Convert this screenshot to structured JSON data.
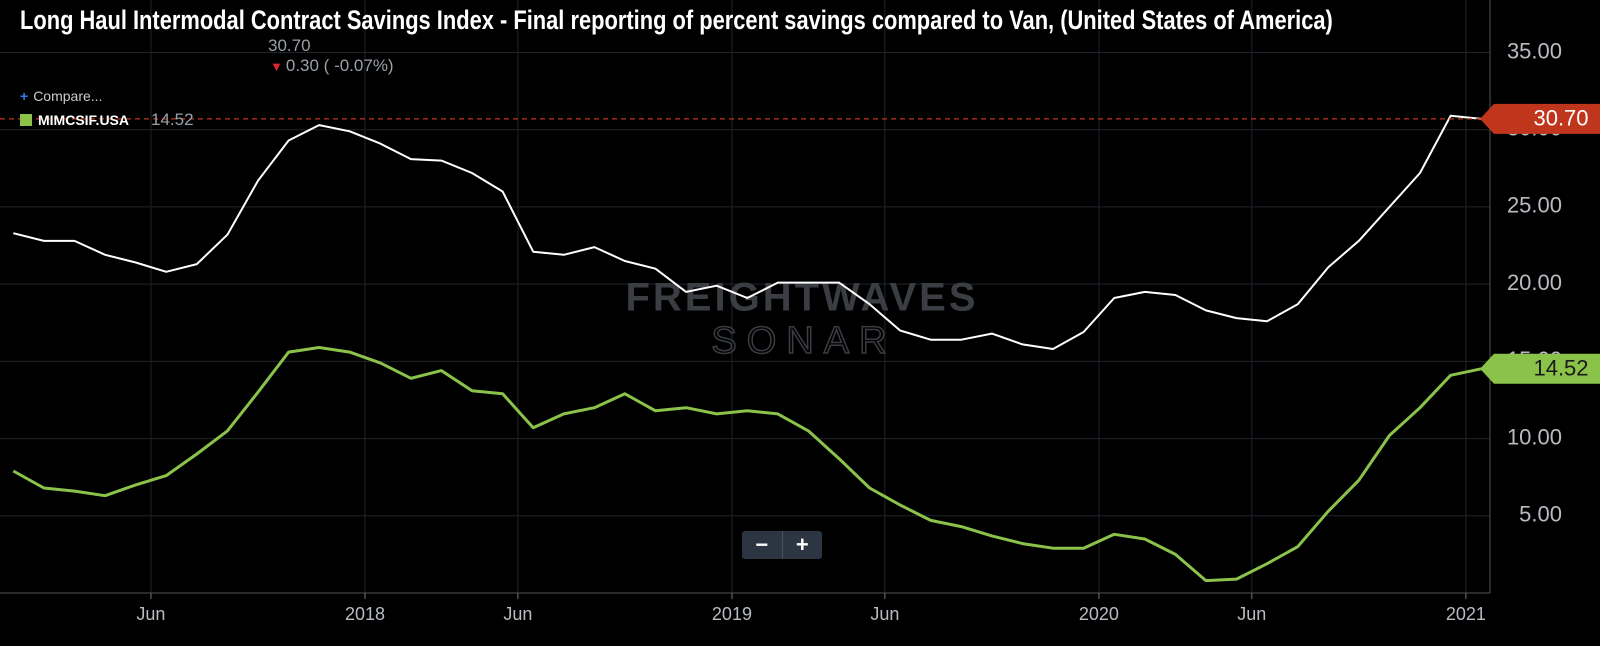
{
  "chart_data": {
    "type": "line",
    "title": "Long Haul Intermodal Contract Savings Index - Final reporting of percent savings compared to Van, (United States of America)",
    "change_label": "0.30 ( -0.07%)",
    "compare_label": "Compare...",
    "watermark": [
      "FREIGHTWAVES",
      "SONAR"
    ],
    "controls": [
      "−",
      "+"
    ],
    "x": [
      "2017-01",
      "2017-02",
      "2017-03",
      "2017-04",
      "2017-05",
      "2017-06",
      "2017-07",
      "2017-08",
      "2017-09",
      "2017-10",
      "2017-11",
      "2017-12",
      "2018-01",
      "2018-02",
      "2018-03",
      "2018-04",
      "2018-05",
      "2018-06",
      "2018-07",
      "2018-08",
      "2018-09",
      "2018-10",
      "2018-11",
      "2018-12",
      "2019-01",
      "2019-02",
      "2019-03",
      "2019-04",
      "2019-05",
      "2019-06",
      "2019-07",
      "2019-08",
      "2019-09",
      "2019-10",
      "2019-11",
      "2019-12",
      "2020-01",
      "2020-02",
      "2020-03",
      "2020-04",
      "2020-05",
      "2020-06",
      "2020-07",
      "2020-08",
      "2020-09",
      "2020-10",
      "2020-11",
      "2020-12",
      "2021-01"
    ],
    "xticks": [
      {
        "value": "2017-06",
        "label": "Jun"
      },
      {
        "value": "2018-01",
        "label": "2018"
      },
      {
        "value": "2018-06",
        "label": "Jun"
      },
      {
        "value": "2019-01",
        "label": "2019"
      },
      {
        "value": "2019-06",
        "label": "Jun"
      },
      {
        "value": "2020-01",
        "label": "2020"
      },
      {
        "value": "2020-06",
        "label": "Jun"
      },
      {
        "value": "2021-01",
        "label": "2021"
      }
    ],
    "ylim": [
      0,
      38.4
    ],
    "yticks": [
      {
        "value": 5,
        "label": "5.00"
      },
      {
        "value": 10,
        "label": "10.00"
      },
      {
        "value": 15,
        "label": "15.00"
      },
      {
        "value": 20,
        "label": "20.00"
      },
      {
        "value": 25,
        "label": "25.00"
      },
      {
        "value": 30,
        "label": "30.00"
      },
      {
        "value": 35,
        "label": "35.00"
      }
    ],
    "grid": true,
    "series": [
      {
        "color": "#ffffff",
        "badge_color": "#c0361c",
        "values": [
          23.3,
          22.8,
          22.8,
          21.9,
          21.4,
          20.8,
          21.3,
          23.2,
          26.7,
          29.3,
          30.3,
          29.9,
          29.1,
          28.1,
          28.0,
          27.2,
          26.0,
          22.1,
          21.9,
          22.4,
          21.5,
          21.0,
          19.5,
          19.9,
          19.1,
          20.1,
          20.1,
          20.1,
          18.7,
          17.0,
          16.4,
          16.4,
          16.8,
          16.1,
          15.8,
          16.9,
          19.1,
          19.5,
          19.3,
          18.3,
          17.8,
          17.6,
          18.7,
          21.1,
          22.8,
          25.0,
          27.2,
          30.9,
          30.7
        ],
        "value_labels": [
          null,
          null,
          null,
          null,
          null,
          null,
          null,
          null,
          null,
          null,
          null,
          null,
          null,
          null,
          null,
          null,
          null,
          null,
          null,
          null,
          null,
          null,
          null,
          null,
          null,
          null,
          null,
          null,
          null,
          null,
          null,
          null,
          null,
          null,
          null,
          null,
          null,
          null,
          null,
          null,
          null,
          null,
          null,
          null,
          null,
          null,
          null,
          null,
          "30.70"
        ]
      },
      {
        "name": "MIMCSIF.USA",
        "color": "#8bc34a",
        "badge_color": "#8bc34a",
        "values": [
          7.9,
          6.8,
          6.6,
          6.3,
          7.0,
          7.6,
          9.0,
          10.5,
          13.0,
          15.6,
          15.9,
          15.6,
          14.9,
          13.9,
          14.4,
          13.1,
          12.9,
          10.7,
          11.6,
          12.0,
          12.9,
          11.8,
          12.0,
          11.6,
          11.8,
          11.6,
          10.5,
          8.7,
          6.8,
          5.7,
          4.7,
          4.3,
          3.7,
          3.2,
          2.9,
          2.9,
          3.8,
          3.5,
          2.5,
          0.8,
          0.9,
          1.9,
          3.0,
          5.3,
          7.3,
          10.2,
          12.0,
          14.1,
          14.52
        ],
        "value_labels": [
          null,
          null,
          null,
          null,
          null,
          null,
          null,
          null,
          null,
          null,
          null,
          null,
          null,
          null,
          null,
          null,
          null,
          null,
          null,
          null,
          null,
          null,
          null,
          null,
          null,
          null,
          null,
          null,
          null,
          null,
          null,
          null,
          null,
          null,
          null,
          null,
          null,
          null,
          null,
          null,
          null,
          null,
          null,
          null,
          null,
          null,
          null,
          null,
          "14.52"
        ]
      }
    ]
  }
}
